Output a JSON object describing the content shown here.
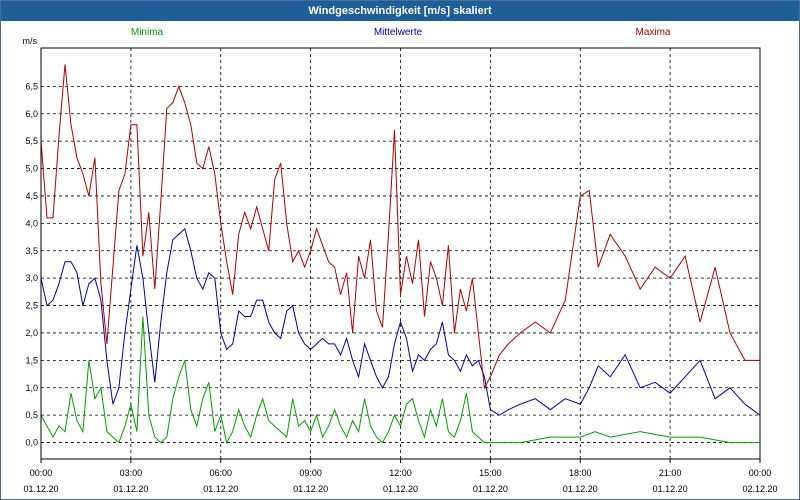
{
  "window": {
    "title": "Windgeschwindigkeit [m/s] skaliert"
  },
  "colors": {
    "minima": "#00a000",
    "mean": "#0000b0",
    "maxima": "#b00000",
    "grid": "#000000"
  },
  "chart_data": {
    "type": "line",
    "title": "Windgeschwindigkeit [m/s] skaliert",
    "ylabel": "m/s",
    "xlabel": "",
    "ylim": [
      -0.3,
      7.2
    ],
    "xlim": [
      0,
      24
    ],
    "yticks": [
      "0,0",
      "0,5",
      "1,0",
      "1,5",
      "2,0",
      "2,5",
      "3,0",
      "3,5",
      "4,0",
      "4,5",
      "5,0",
      "5,5",
      "6,0",
      "6,5"
    ],
    "xticks": [
      {
        "time": "00:00",
        "date": "01.12.20"
      },
      {
        "time": "03:00",
        "date": "01.12.20"
      },
      {
        "time": "06:00",
        "date": "01.12.20"
      },
      {
        "time": "09:00",
        "date": "01.12.20"
      },
      {
        "time": "12:00",
        "date": "01.12.20"
      },
      {
        "time": "15:00",
        "date": "01.12.20"
      },
      {
        "time": "18:00",
        "date": "01.12.20"
      },
      {
        "time": "21:00",
        "date": "01.12.20"
      },
      {
        "time": "00:00",
        "date": "02.12.20"
      }
    ],
    "grid": true,
    "legend_position": "top",
    "series": [
      {
        "name": "Minima",
        "x": [
          0,
          0.2,
          0.4,
          0.6,
          0.8,
          1.0,
          1.2,
          1.4,
          1.6,
          1.8,
          2.0,
          2.2,
          2.4,
          2.6,
          2.8,
          3.0,
          3.2,
          3.4,
          3.6,
          3.8,
          4.0,
          4.2,
          4.4,
          4.6,
          4.8,
          5.0,
          5.2,
          5.4,
          5.6,
          5.8,
          6.0,
          6.2,
          6.4,
          6.6,
          6.8,
          7.0,
          7.2,
          7.4,
          7.6,
          7.8,
          8.0,
          8.2,
          8.4,
          8.6,
          8.8,
          9.0,
          9.2,
          9.4,
          9.6,
          9.8,
          10.0,
          10.2,
          10.4,
          10.6,
          10.8,
          11.0,
          11.2,
          11.4,
          11.6,
          11.8,
          12.0,
          12.2,
          12.4,
          12.6,
          12.8,
          13.0,
          13.2,
          13.4,
          13.6,
          13.8,
          14.0,
          14.2,
          14.4,
          14.6,
          14.8,
          15.0,
          16.0,
          17.0,
          18.0,
          18.5,
          19.0,
          20.0,
          21.0,
          22.0,
          23.0,
          24.0
        ],
        "values": [
          0.5,
          0.3,
          0.1,
          0.3,
          0.2,
          0.9,
          0.4,
          0.2,
          1.5,
          0.8,
          1.0,
          0.2,
          0.1,
          0.0,
          0.3,
          0.7,
          0.2,
          2.3,
          0.5,
          0.1,
          0.0,
          0.1,
          0.8,
          1.2,
          1.5,
          0.6,
          0.3,
          0.8,
          1.1,
          0.2,
          0.5,
          0.0,
          0.2,
          0.6,
          0.3,
          0.1,
          0.5,
          0.8,
          0.4,
          0.3,
          0.2,
          0.1,
          0.8,
          0.3,
          0.4,
          0.2,
          0.5,
          0.1,
          0.3,
          0.6,
          0.3,
          0.1,
          0.4,
          0.2,
          0.8,
          0.3,
          0.1,
          0.0,
          0.2,
          0.5,
          0.3,
          0.7,
          0.8,
          0.4,
          0.1,
          0.6,
          0.3,
          0.8,
          0.2,
          0.1,
          0.4,
          0.9,
          0.2,
          0.1,
          0.0,
          0.0,
          0.0,
          0.1,
          0.1,
          0.2,
          0.1,
          0.2,
          0.1,
          0.1,
          0.0,
          0.0
        ]
      },
      {
        "name": "Mittelwerte",
        "x": [
          0,
          0.2,
          0.4,
          0.6,
          0.8,
          1.0,
          1.2,
          1.4,
          1.6,
          1.8,
          2.0,
          2.2,
          2.4,
          2.6,
          2.8,
          3.0,
          3.2,
          3.4,
          3.6,
          3.8,
          4.0,
          4.2,
          4.4,
          4.6,
          4.8,
          5.0,
          5.2,
          5.4,
          5.6,
          5.8,
          6.0,
          6.2,
          6.4,
          6.6,
          6.8,
          7.0,
          7.2,
          7.4,
          7.6,
          7.8,
          8.0,
          8.2,
          8.4,
          8.6,
          8.8,
          9.0,
          9.2,
          9.4,
          9.6,
          9.8,
          10.0,
          10.2,
          10.4,
          10.6,
          10.8,
          11.0,
          11.2,
          11.4,
          11.6,
          11.8,
          12.0,
          12.2,
          12.4,
          12.6,
          12.8,
          13.0,
          13.2,
          13.4,
          13.6,
          13.8,
          14.0,
          14.2,
          14.4,
          14.6,
          14.8,
          15.0,
          15.3,
          15.6,
          16.0,
          16.5,
          17.0,
          17.5,
          18.0,
          18.3,
          18.6,
          19.0,
          19.5,
          20.0,
          20.5,
          21.0,
          21.5,
          22.0,
          22.5,
          23.0,
          23.5,
          24.0
        ],
        "values": [
          3.0,
          2.5,
          2.6,
          2.9,
          3.3,
          3.3,
          3.1,
          2.5,
          2.9,
          3.0,
          2.6,
          1.5,
          0.7,
          1.0,
          2.0,
          2.8,
          3.6,
          3.0,
          2.0,
          1.1,
          2.2,
          3.1,
          3.7,
          3.8,
          3.9,
          3.5,
          3.0,
          2.8,
          3.1,
          3.0,
          2.0,
          1.7,
          1.8,
          2.4,
          2.3,
          2.3,
          2.6,
          2.6,
          2.2,
          2.0,
          1.9,
          2.4,
          2.5,
          2.0,
          1.8,
          1.7,
          1.8,
          1.9,
          1.8,
          1.8,
          1.6,
          1.9,
          1.5,
          1.2,
          1.8,
          1.5,
          1.2,
          1.0,
          1.2,
          1.8,
          2.2,
          1.9,
          1.3,
          1.6,
          1.5,
          1.7,
          1.8,
          2.2,
          1.6,
          1.5,
          1.3,
          1.6,
          1.4,
          1.5,
          1.2,
          0.6,
          0.5,
          0.6,
          0.7,
          0.8,
          0.6,
          0.8,
          0.7,
          1.0,
          1.4,
          1.2,
          1.6,
          1.0,
          1.1,
          0.9,
          1.2,
          1.5,
          0.8,
          1.0,
          0.7,
          0.5
        ]
      },
      {
        "name": "Maxima",
        "x": [
          0,
          0.2,
          0.4,
          0.6,
          0.8,
          1.0,
          1.2,
          1.4,
          1.6,
          1.8,
          2.0,
          2.2,
          2.4,
          2.6,
          2.8,
          3.0,
          3.2,
          3.4,
          3.6,
          3.8,
          4.0,
          4.2,
          4.4,
          4.6,
          4.8,
          5.0,
          5.2,
          5.4,
          5.6,
          5.8,
          6.0,
          6.2,
          6.4,
          6.6,
          6.8,
          7.0,
          7.2,
          7.4,
          7.6,
          7.8,
          8.0,
          8.2,
          8.4,
          8.6,
          8.8,
          9.0,
          9.2,
          9.4,
          9.6,
          9.8,
          10.0,
          10.2,
          10.4,
          10.6,
          10.8,
          11.0,
          11.2,
          11.4,
          11.6,
          11.8,
          12.0,
          12.2,
          12.4,
          12.6,
          12.8,
          13.0,
          13.2,
          13.4,
          13.6,
          13.8,
          14.0,
          14.2,
          14.4,
          14.6,
          14.8,
          15.0,
          15.3,
          15.6,
          16.0,
          16.5,
          17.0,
          17.5,
          18.0,
          18.3,
          18.6,
          19.0,
          19.5,
          20.0,
          20.5,
          21.0,
          21.5,
          22.0,
          22.5,
          23.0,
          23.5,
          24.0
        ],
        "values": [
          5.5,
          4.1,
          4.1,
          5.6,
          6.9,
          5.8,
          5.2,
          4.9,
          4.5,
          5.2,
          2.9,
          1.8,
          3.2,
          4.6,
          4.9,
          5.8,
          5.8,
          3.4,
          4.2,
          2.8,
          4.4,
          6.1,
          6.2,
          6.5,
          6.2,
          5.8,
          5.1,
          5.0,
          5.4,
          4.9,
          4.0,
          3.3,
          2.7,
          3.8,
          4.2,
          3.9,
          4.3,
          3.9,
          3.5,
          4.8,
          5.1,
          4.0,
          3.3,
          3.5,
          3.2,
          3.5,
          3.9,
          3.6,
          3.3,
          3.2,
          2.7,
          3.1,
          2.0,
          3.4,
          3.0,
          3.7,
          2.4,
          2.1,
          3.8,
          5.7,
          2.7,
          3.4,
          2.9,
          3.7,
          2.3,
          3.3,
          3.0,
          2.5,
          3.6,
          2.0,
          2.8,
          2.4,
          3.0,
          2.0,
          1.0,
          1.2,
          1.6,
          1.8,
          2.0,
          2.2,
          2.0,
          2.6,
          4.5,
          4.6,
          3.2,
          3.8,
          3.4,
          2.8,
          3.2,
          3.0,
          3.4,
          2.2,
          3.2,
          2.0,
          1.5,
          1.5
        ]
      }
    ]
  }
}
